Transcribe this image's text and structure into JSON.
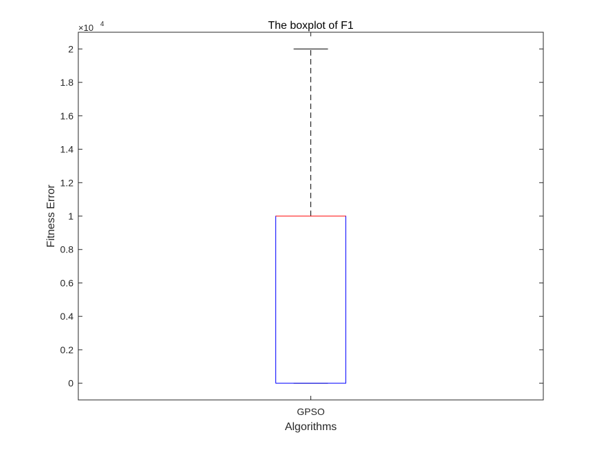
{
  "chart_data": {
    "type": "boxplot",
    "title": "The boxplot of F1",
    "xlabel": "Algorithms",
    "ylabel": "Fitness Error",
    "y_exponent_base": "×10",
    "y_exponent_power": "4",
    "ylim": [
      -0.1,
      2.1
    ],
    "yticks": [
      0,
      0.2,
      0.4,
      0.6,
      0.8,
      1,
      1.2,
      1.4,
      1.6,
      1.8,
      2
    ],
    "ytick_labels": [
      "0",
      "0.2",
      "0.4",
      "0.6",
      "0.8",
      "1",
      "1.2",
      "1.4",
      "1.6",
      "1.8",
      "2"
    ],
    "categories": [
      "GPSO"
    ],
    "boxes": [
      {
        "category": "GPSO",
        "min": 0,
        "q1": 0,
        "median": 1,
        "q3": 1,
        "max": 2
      }
    ],
    "grid": false,
    "colors": {
      "box": "#0000ff",
      "median": "#ff0000",
      "whisker": "#000000",
      "axes": "#262626"
    }
  }
}
